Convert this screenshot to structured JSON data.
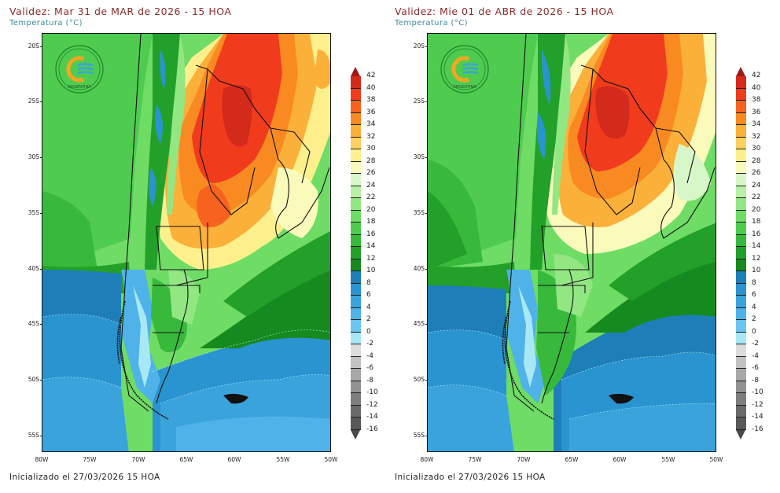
{
  "panels": [
    {
      "title": "Validez: Mar 31 de MAR de 2026 - 15 HOA",
      "subtitle": "Temperatura (°C)",
      "footer": "Inicializado el 27/03/2026 15 HOA",
      "logo_text": "ARGENTINA"
    },
    {
      "title": "Validez: Mie 01 de ABR de 2026 - 15 HOA",
      "subtitle": "Temperatura (°C)",
      "footer": "Inicializado el 27/03/2026 15 HOA",
      "logo_text": "ARGENTINA"
    }
  ],
  "axes": {
    "lat_labels": [
      "20S",
      "25S",
      "30S",
      "35S",
      "40S",
      "45S",
      "50S",
      "55S"
    ],
    "lon_labels": [
      "80W",
      "75W",
      "70W",
      "65W",
      "60W",
      "55W",
      "50W"
    ]
  },
  "colorbar": {
    "unit": "°C",
    "labels": [
      "42",
      "40",
      "38",
      "36",
      "34",
      "32",
      "30",
      "28",
      "26",
      "24",
      "22",
      "20",
      "18",
      "16",
      "14",
      "12",
      "10",
      "8",
      "6",
      "4",
      "2",
      "0",
      "-2",
      "-4",
      "-6",
      "-8",
      "-10",
      "-12",
      "-14",
      "-16"
    ],
    "colors": [
      "#a01818",
      "#d42a1c",
      "#f03c1c",
      "#f7621e",
      "#f98a22",
      "#fbb03a",
      "#fdd060",
      "#fdf08c",
      "#fafabb",
      "#d8f7c8",
      "#b8f0a6",
      "#93e783",
      "#6fdc66",
      "#4fcc4f",
      "#38b93c",
      "#22a02a",
      "#158a1f",
      "#1e7fb8",
      "#2994cf",
      "#3aa3dc",
      "#4fb2e8",
      "#6cc4f0",
      "#a8e8f6",
      "#dcdcdc",
      "#c2c2c2",
      "#a8a8a8",
      "#929292",
      "#7e7e7e",
      "#6a6a6a",
      "#585858",
      "#484848"
    ]
  },
  "legend_colors": {
    "hot_max": "#a01818",
    "cold_min": "#484848",
    "ocean_blue": "#4fb2e8",
    "land_green": "#4fcc4f"
  }
}
